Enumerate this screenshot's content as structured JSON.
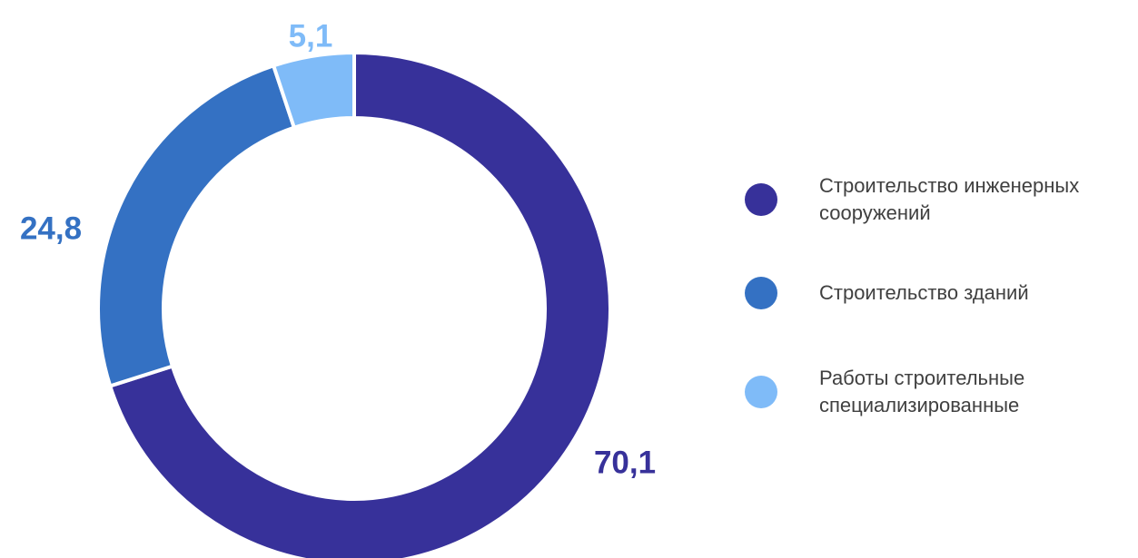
{
  "chart_data": {
    "type": "pie",
    "variant": "donut",
    "title": "",
    "slices": [
      {
        "label": "Строительство инженерных сооружений",
        "value": 70.1,
        "display": "70,1",
        "color": "#37319A"
      },
      {
        "label": "Строительство зданий",
        "value": 24.8,
        "display": "24,8",
        "color": "#3471C3"
      },
      {
        "label": "Работы строительные специализированные",
        "value": 5.1,
        "display": "5,1",
        "color": "#7FBBF8"
      }
    ],
    "legend_placement": "right",
    "start_angle_deg": 0,
    "direction": "clockwise"
  },
  "legend": {
    "items": [
      {
        "label": "Строительство инженерных сооружений",
        "color": "#37319A"
      },
      {
        "label": "Строительство зданий",
        "color": "#3471C3"
      },
      {
        "label": "Работы строительные специализированные",
        "color": "#7FBBF8"
      }
    ]
  }
}
